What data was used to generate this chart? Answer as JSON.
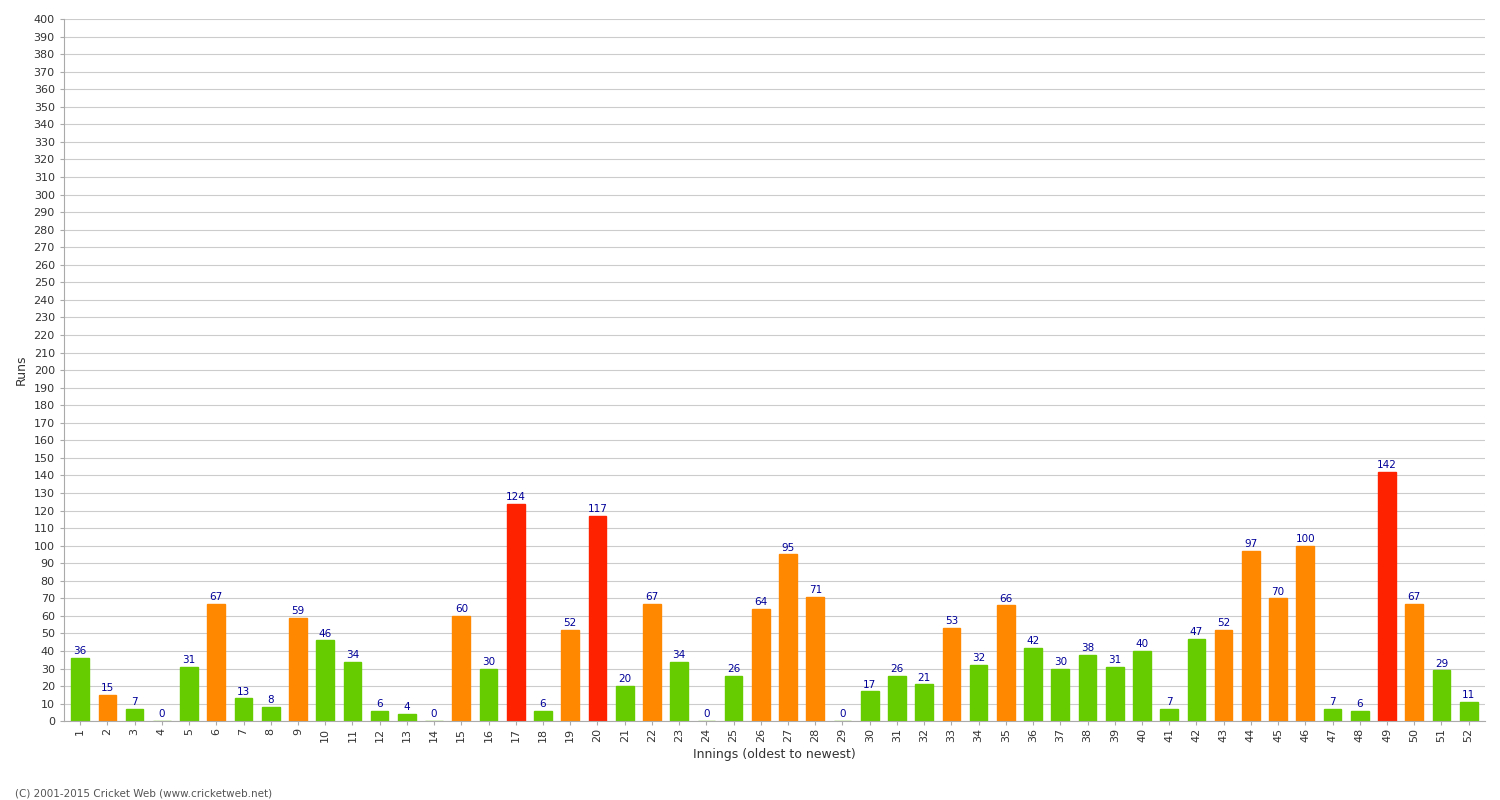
{
  "xlabel": "Innings (oldest to newest)",
  "ylabel": "Runs",
  "ylim": [
    0,
    400
  ],
  "ytick_step": 10,
  "bg_color": "#ffffff",
  "grid_color": "#cccccc",
  "innings": [
    1,
    2,
    3,
    4,
    5,
    6,
    7,
    8,
    9,
    10,
    11,
    12,
    13,
    14,
    15,
    16,
    17,
    18,
    19,
    20,
    21,
    22,
    23,
    24,
    25,
    26,
    27,
    28,
    29,
    30,
    31,
    32,
    33,
    34,
    35,
    36,
    37,
    38,
    39,
    40,
    41,
    42,
    43,
    44,
    45,
    46,
    47,
    48,
    49,
    50,
    51,
    52
  ],
  "values": [
    36,
    15,
    7,
    0,
    31,
    67,
    13,
    8,
    59,
    46,
    34,
    6,
    4,
    0,
    60,
    30,
    124,
    6,
    52,
    117,
    20,
    67,
    34,
    0,
    26,
    64,
    95,
    71,
    0,
    17,
    26,
    21,
    53,
    32,
    66,
    42,
    30,
    38,
    31,
    40,
    7,
    47,
    52,
    97,
    70,
    100,
    7,
    6,
    142,
    67,
    29,
    11
  ],
  "colors": [
    "#66cc00",
    "#ff8800",
    "#66cc00",
    "#66cc00",
    "#66cc00",
    "#ff8800",
    "#66cc00",
    "#66cc00",
    "#ff8800",
    "#66cc00",
    "#66cc00",
    "#66cc00",
    "#66cc00",
    "#66cc00",
    "#ff8800",
    "#66cc00",
    "#ff2200",
    "#66cc00",
    "#ff8800",
    "#ff2200",
    "#66cc00",
    "#ff8800",
    "#66cc00",
    "#66cc00",
    "#66cc00",
    "#ff8800",
    "#ff8800",
    "#ff8800",
    "#66cc00",
    "#66cc00",
    "#66cc00",
    "#66cc00",
    "#ff8800",
    "#66cc00",
    "#ff8800",
    "#66cc00",
    "#66cc00",
    "#66cc00",
    "#66cc00",
    "#66cc00",
    "#66cc00",
    "#66cc00",
    "#ff8800",
    "#ff8800",
    "#ff8800",
    "#ff8800",
    "#66cc00",
    "#66cc00",
    "#ff2200",
    "#ff8800",
    "#66cc00",
    "#66cc00"
  ],
  "label_color": "#000099",
  "label_fontsize": 7.5,
  "tick_fontsize": 8,
  "footer": "(C) 2001-2015 Cricket Web (www.cricketweb.net)"
}
